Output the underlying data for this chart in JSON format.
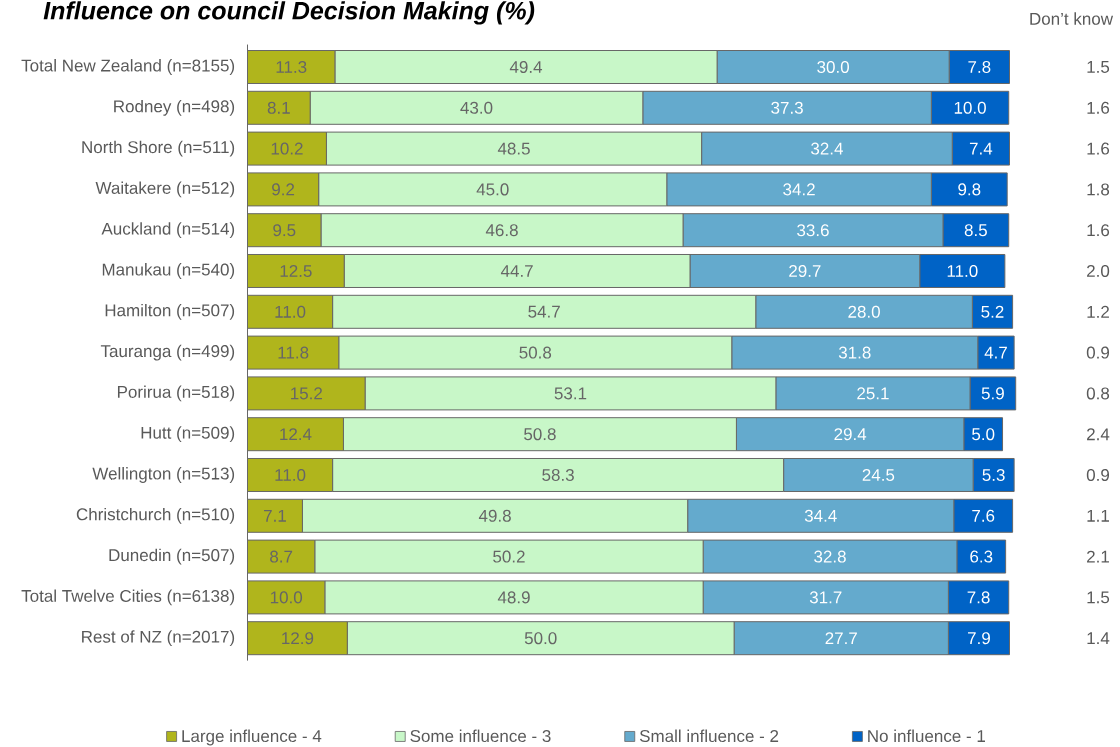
{
  "chart_data": [
    {
      "type": "bar",
      "title": "Influence on council Decision Making (%)",
      "orientation": "horizontal",
      "stacked": true,
      "categories": [
        "Total New Zealand (n=8155)",
        "Rodney (n=498)",
        "North Shore (n=511)",
        "Waitakere (n=512)",
        "Auckland (n=514)",
        "Manukau (n=540)",
        "Hamilton (n=507)",
        "Tauranga (n=499)",
        "Porirua (n=518)",
        "Hutt (n=509)",
        "Wellington (n=513)",
        "Christchurch (n=510)",
        "Dunedin (n=507)",
        "Total Twelve Cities (n=6138)",
        "Rest of NZ (n=2017)"
      ],
      "series": [
        {
          "name": "Large influence - 4",
          "color": "#b0b51c",
          "values": [
            11.3,
            8.1,
            10.2,
            9.2,
            9.5,
            12.5,
            11.0,
            11.8,
            15.2,
            12.4,
            11.0,
            7.1,
            8.7,
            10.0,
            12.9
          ],
          "value_labels": [
            "11.3",
            "8.1",
            "10.2",
            "9.2",
            "9.5",
            "12.5",
            "11.0",
            "11.8",
            "15.2",
            "12.4",
            "11.0",
            "7.1",
            "8.7",
            "10.0",
            "12.9"
          ]
        },
        {
          "name": "Some influence - 3",
          "color": "#c8f7c8",
          "values": [
            49.4,
            43.0,
            48.5,
            45.0,
            46.8,
            44.7,
            54.7,
            50.8,
            53.1,
            50.8,
            58.3,
            49.8,
            50.2,
            48.9,
            50.0
          ],
          "value_labels": [
            "49.4",
            "43.0",
            "48.5",
            "45.0",
            "46.8",
            "44.7",
            "54.7",
            "50.8",
            "53.1",
            "50.8",
            "58.3",
            "49.8",
            "50.2",
            "48.9",
            "50.0"
          ]
        },
        {
          "name": "Small influence - 2",
          "color": "#64aacd",
          "values": [
            30.0,
            37.3,
            32.4,
            34.2,
            33.6,
            29.7,
            28.0,
            31.8,
            25.1,
            29.4,
            24.5,
            34.4,
            32.8,
            31.7,
            27.7
          ],
          "value_labels": [
            "30.0",
            "37.3",
            "32.4",
            "34.2",
            "33.6",
            "29.7",
            "28.0",
            "31.8",
            "25.1",
            "29.4",
            "24.5",
            "34.4",
            "32.8",
            "31.7",
            "27.7"
          ]
        },
        {
          "name": "No influence - 1",
          "color": "#0063c6",
          "values": [
            7.8,
            10.0,
            7.4,
            9.8,
            8.5,
            11.0,
            5.2,
            4.7,
            5.9,
            5.0,
            5.3,
            7.6,
            6.3,
            7.8,
            7.9
          ],
          "value_labels": [
            "7.8",
            "10.0",
            "7.4",
            "9.8",
            "8.5",
            "11.0",
            "5.2",
            "4.7",
            "5.9",
            "5.0",
            "5.3",
            "7.6",
            "6.3",
            "7.8",
            "7.9"
          ]
        }
      ],
      "legend": "bottom",
      "tick_labels": "y"
    },
    {
      "type": "other",
      "title": "Don’t know",
      "annotations": [
        "1.5",
        "1.6",
        "1.6",
        "1.8",
        "1.6",
        "2.0",
        "1.2",
        "0.9",
        "0.8",
        "2.4",
        "0.9",
        "1.1",
        "2.1",
        "1.5",
        "1.4"
      ]
    }
  ]
}
